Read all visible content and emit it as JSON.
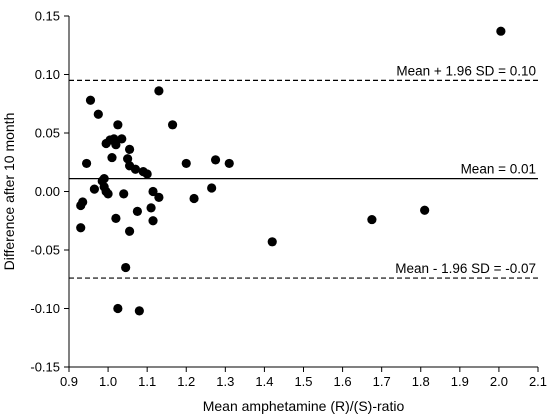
{
  "chart_data": {
    "type": "scatter",
    "xlabel": "Mean amphetamine (R)/(S)-ratio",
    "ylabel": "Difference after 10 month",
    "xlim": [
      0.9,
      2.1
    ],
    "ylim": [
      -0.15,
      0.15
    ],
    "xticks": [
      "0.9",
      "1.0",
      "1.1",
      "1.2",
      "1.3",
      "1.4",
      "1.5",
      "1.6",
      "1.7",
      "1.8",
      "1.9",
      "2.0",
      "2.1"
    ],
    "yticks": [
      "-0.15",
      "-0.10",
      "-0.05",
      "0.00",
      "0.05",
      "0.10",
      "0.15"
    ],
    "grid": false,
    "reference_lines": [
      {
        "label": "Mean + 1.96 SD = 0.10",
        "y": 0.095,
        "style": "dashed"
      },
      {
        "label": "Mean = 0.01",
        "y": 0.011,
        "style": "solid"
      },
      {
        "label": "Mean - 1.96 SD = -0.07",
        "y": -0.074,
        "style": "dashed"
      }
    ],
    "points": [
      {
        "x": 0.93,
        "y": -0.012
      },
      {
        "x": 0.935,
        "y": -0.009
      },
      {
        "x": 0.93,
        "y": -0.031
      },
      {
        "x": 0.945,
        "y": 0.024
      },
      {
        "x": 0.955,
        "y": 0.078
      },
      {
        "x": 0.965,
        "y": 0.002
      },
      {
        "x": 0.975,
        "y": 0.066
      },
      {
        "x": 0.985,
        "y": 0.009
      },
      {
        "x": 0.99,
        "y": 0.011
      },
      {
        "x": 0.99,
        "y": 0.004
      },
      {
        "x": 0.995,
        "y": 0.0
      },
      {
        "x": 1.0,
        "y": -0.002
      },
      {
        "x": 0.995,
        "y": 0.041
      },
      {
        "x": 1.005,
        "y": 0.044
      },
      {
        "x": 1.01,
        "y": 0.029
      },
      {
        "x": 1.015,
        "y": 0.045
      },
      {
        "x": 1.02,
        "y": 0.04
      },
      {
        "x": 1.025,
        "y": 0.057
      },
      {
        "x": 1.035,
        "y": 0.045
      },
      {
        "x": 1.02,
        "y": -0.023
      },
      {
        "x": 1.04,
        "y": -0.002
      },
      {
        "x": 1.05,
        "y": 0.028
      },
      {
        "x": 1.055,
        "y": 0.036
      },
      {
        "x": 1.055,
        "y": 0.022
      },
      {
        "x": 1.07,
        "y": 0.019
      },
      {
        "x": 1.045,
        "y": -0.065
      },
      {
        "x": 1.055,
        "y": -0.034
      },
      {
        "x": 1.075,
        "y": -0.017
      },
      {
        "x": 1.09,
        "y": 0.017
      },
      {
        "x": 1.1,
        "y": 0.015
      },
      {
        "x": 1.11,
        "y": -0.014
      },
      {
        "x": 1.115,
        "y": 0.0
      },
      {
        "x": 1.115,
        "y": -0.025
      },
      {
        "x": 1.13,
        "y": -0.005
      },
      {
        "x": 1.13,
        "y": 0.086
      },
      {
        "x": 1.165,
        "y": 0.057
      },
      {
        "x": 1.2,
        "y": 0.024
      },
      {
        "x": 1.22,
        "y": -0.006
      },
      {
        "x": 1.265,
        "y": 0.003
      },
      {
        "x": 1.275,
        "y": 0.027
      },
      {
        "x": 1.31,
        "y": 0.024
      },
      {
        "x": 1.025,
        "y": -0.1
      },
      {
        "x": 1.08,
        "y": -0.102
      },
      {
        "x": 1.42,
        "y": -0.043
      },
      {
        "x": 1.675,
        "y": -0.024
      },
      {
        "x": 1.81,
        "y": -0.016
      },
      {
        "x": 2.005,
        "y": 0.137
      }
    ]
  }
}
